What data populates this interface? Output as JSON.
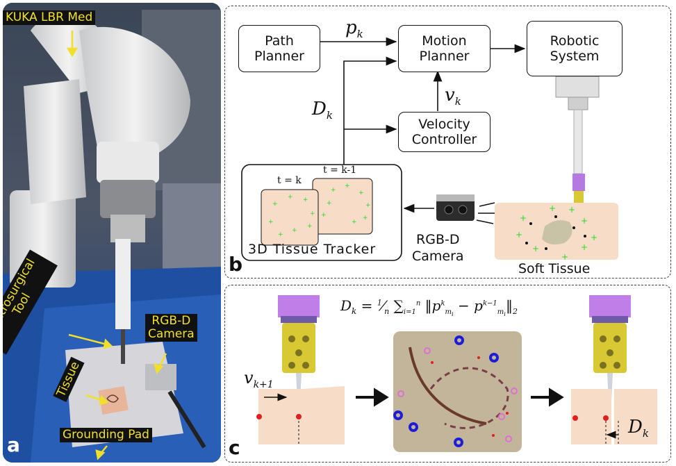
{
  "panel_a": {
    "letter": "a",
    "labels": {
      "robot": "KUKA LBR Med",
      "tool": "Electrosurgical\nTool",
      "camera": "RGB-D\nCamera",
      "tissue": "Tissue",
      "pad": "Grounding Pad"
    }
  },
  "panel_b": {
    "letter": "b",
    "boxes": {
      "path_planner": "Path\nPlanner",
      "motion_planner": "Motion\nPlanner",
      "robotic_system": "Robotic\nSystem",
      "velocity_controller": "Velocity\nController"
    },
    "symbols": {
      "p_k": "pk",
      "v_k": "vk",
      "D_k": "Dk"
    },
    "tracker": {
      "label": "3D Tissue Tracker",
      "frame_current": "t = k",
      "frame_previous": "t = k-1"
    },
    "camera_label": "RGB-D\nCamera",
    "tissue_label": "Soft Tissue"
  },
  "panel_c": {
    "letter": "c",
    "equation": "Dk = 1/n Σi=1..n ‖pmi^k − pmi^(k−1)‖2",
    "v_label": "vk+1",
    "d_label": "Dk"
  },
  "colors": {
    "tissue": "#f7dcc7",
    "marker_green": "#22dd22",
    "tool_yellow": "#d8c833",
    "tool_purple": "#b57ae0",
    "label_bg": "#111111",
    "label_text": "#f1e02a"
  }
}
